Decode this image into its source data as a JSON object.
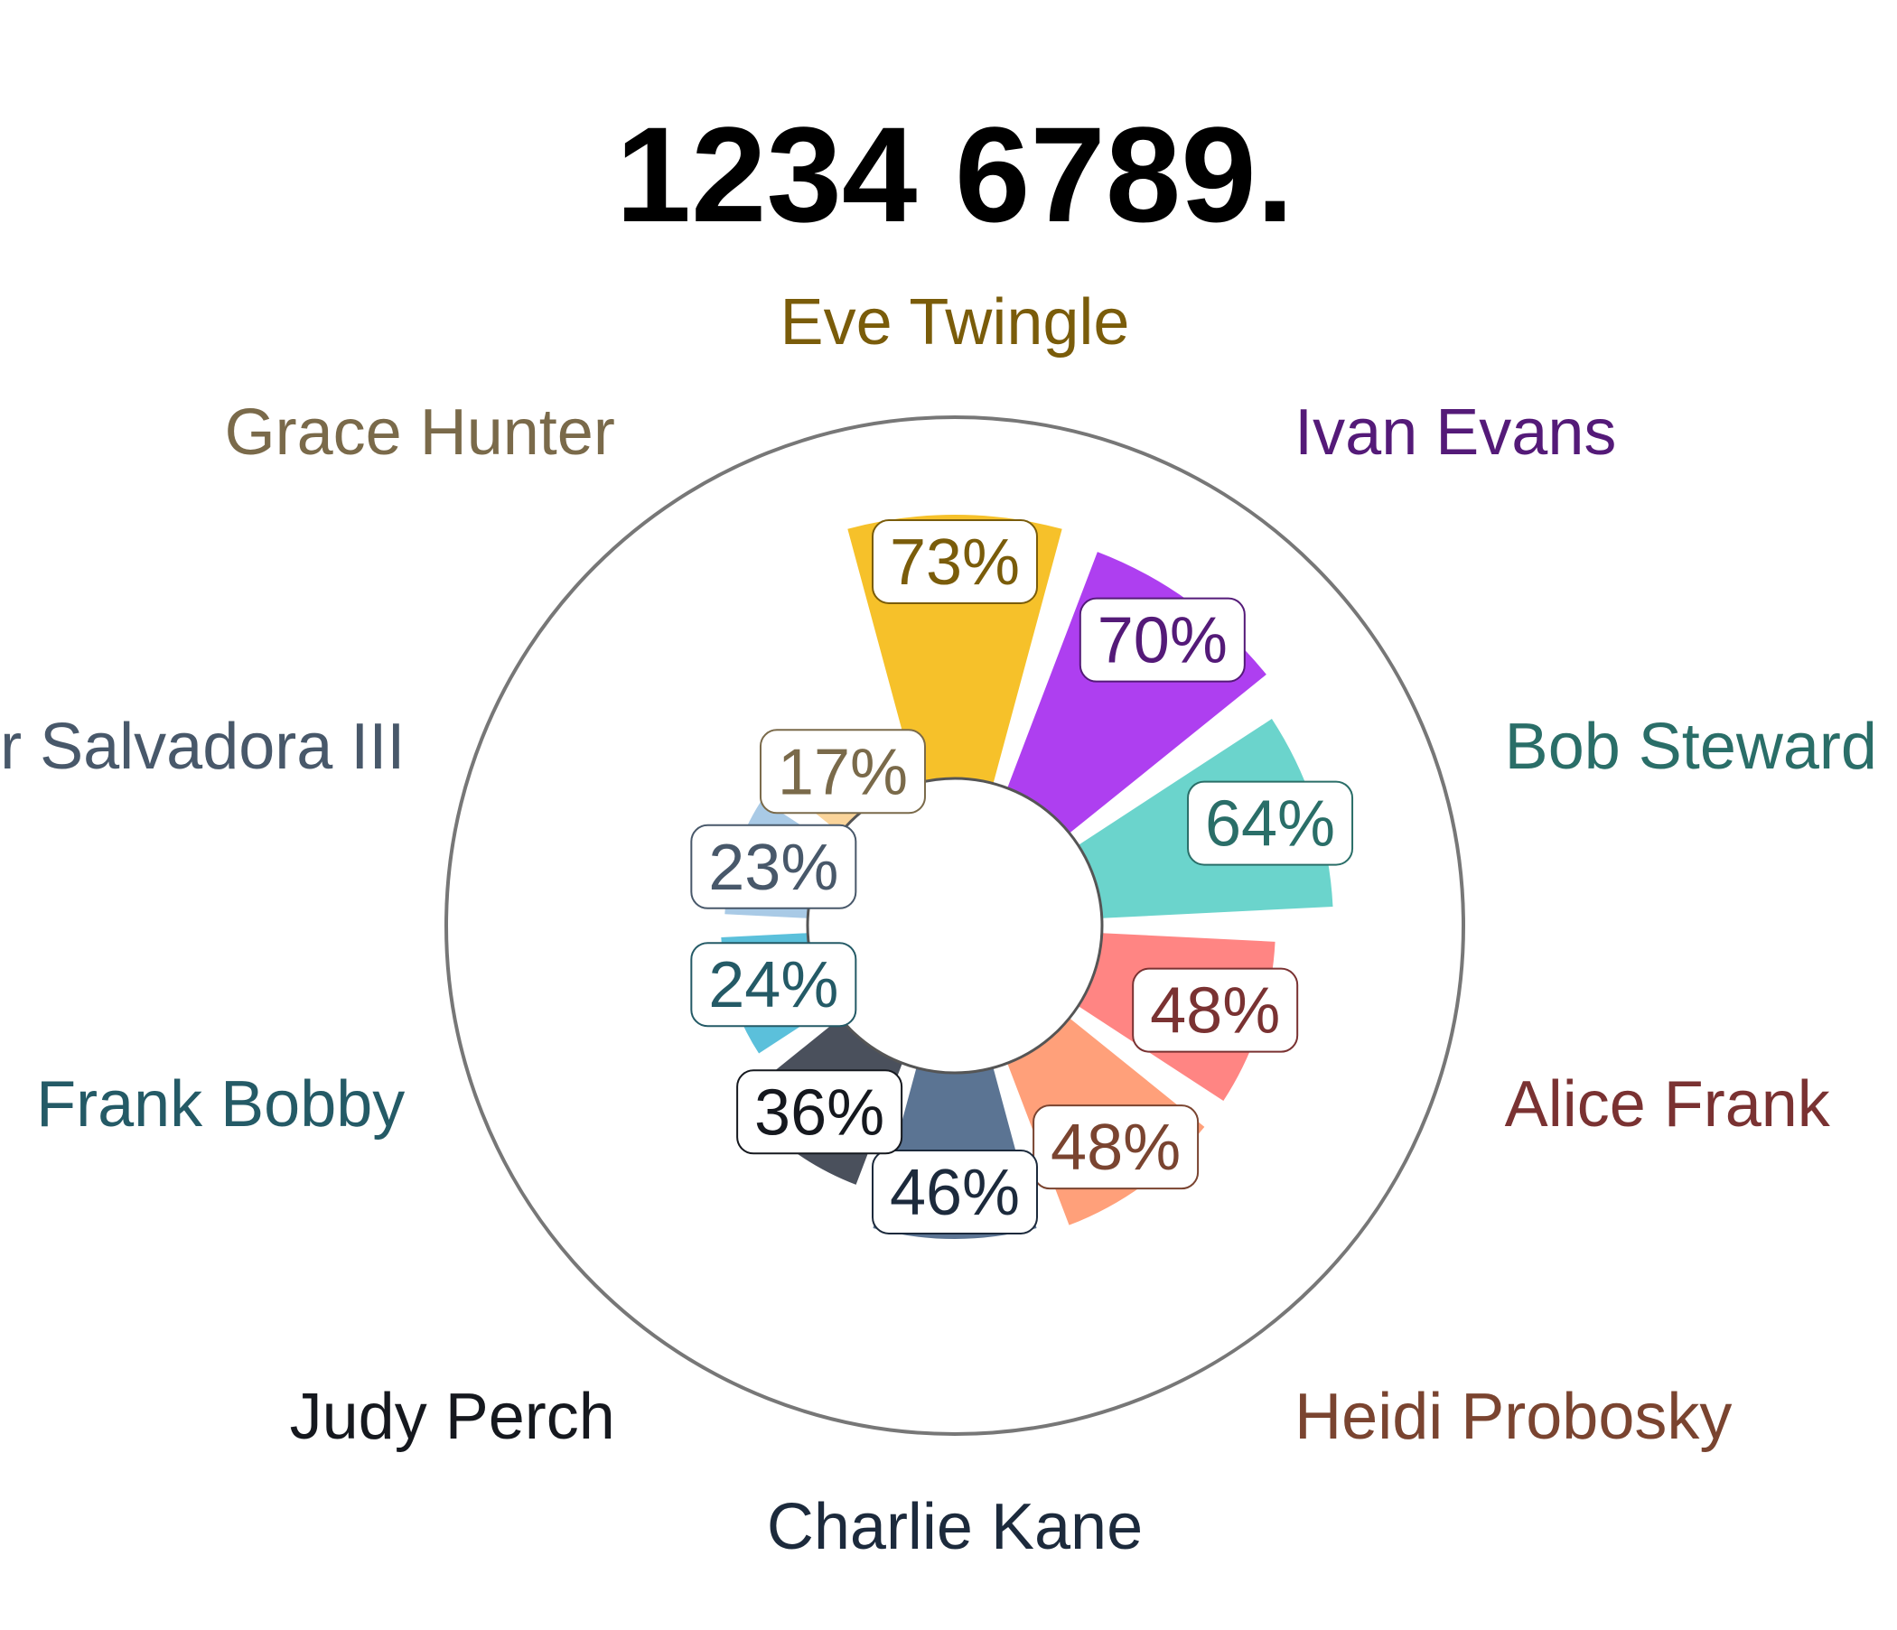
{
  "chart_data": {
    "type": "polar-bar",
    "title": "1234 6789.",
    "radial_range": [
      0,
      100
    ],
    "grid": false,
    "legend": "none",
    "categories": [
      {
        "name": "Eve Twingle",
        "value": 73,
        "label": "73%",
        "color": "#F6C12A",
        "text_color": "#7A5C0A"
      },
      {
        "name": "Ivan Evans",
        "value": 70,
        "label": "70%",
        "color": "#AE3FF0",
        "text_color": "#541A78"
      },
      {
        "name": "Bob Steward",
        "value": 64,
        "label": "64%",
        "color": "#6BD4CC",
        "text_color": "#2A6E68"
      },
      {
        "name": "Alice Frank",
        "value": 48,
        "label": "48%",
        "color": "#FF8583",
        "text_color": "#7A3232"
      },
      {
        "name": "Heidi Probosky",
        "value": 48,
        "label": "48%",
        "color": "#FFA07A",
        "text_color": "#7A4430"
      },
      {
        "name": "Charlie Kane",
        "value": 46,
        "label": "46%",
        "color": "#5B7493",
        "text_color": "#1C2A3C"
      },
      {
        "name": "Judy Perch",
        "value": 36,
        "label": "36%",
        "color": "#4A505C",
        "text_color": "#15181E"
      },
      {
        "name": "Frank Bobby",
        "value": 24,
        "label": "24%",
        "color": "#5BC0DB",
        "text_color": "#245A66"
      },
      {
        "name": "Peter Salvadora III",
        "value": 23,
        "label": "23%",
        "color": "#A9CAE6",
        "text_color": "#48586A"
      },
      {
        "name": "Grace Hunter",
        "value": 17,
        "label": "17%",
        "color": "#FAD49A",
        "text_color": "#7A6A4A"
      }
    ]
  }
}
